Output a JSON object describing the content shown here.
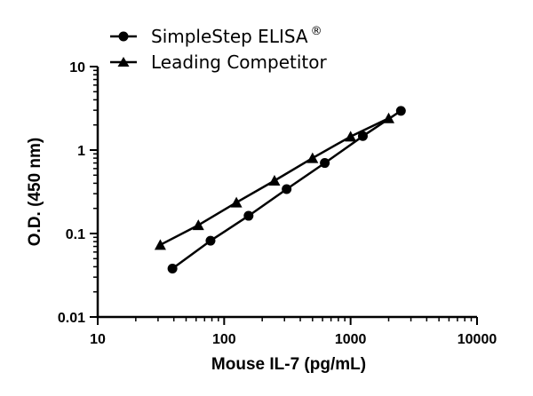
{
  "chart_data": {
    "type": "scatter",
    "x_scale": "log",
    "y_scale": "log",
    "xlabel": "Mouse IL-7 (pg/mL)",
    "ylabel": "O.D. (450 nm)",
    "xlim": [
      10,
      10000
    ],
    "ylim": [
      0.01,
      10
    ],
    "x_ticks": [
      "10",
      "100",
      "1000",
      "10000"
    ],
    "y_ticks": [
      "0.01",
      "0.1",
      "1",
      "10"
    ],
    "legend_position": "top-left",
    "grid": false,
    "series": [
      {
        "name": "SimpleStep ELISA",
        "name_mark": "®",
        "marker": "circle",
        "color": "#000000",
        "x": [
          39,
          78,
          156,
          312,
          625,
          1250,
          2500
        ],
        "y": [
          0.038,
          0.082,
          0.163,
          0.34,
          0.7,
          1.47,
          2.95
        ]
      },
      {
        "name": "Leading Competitor",
        "marker": "triangle",
        "color": "#000000",
        "x": [
          31.25,
          62.5,
          125,
          250,
          500,
          1000,
          2000
        ],
        "y": [
          0.073,
          0.126,
          0.235,
          0.43,
          0.8,
          1.45,
          2.4
        ]
      }
    ]
  }
}
